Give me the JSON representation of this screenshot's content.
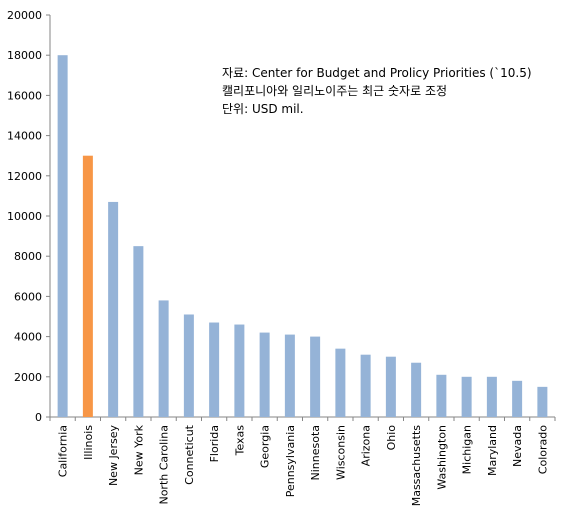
{
  "chart_data": {
    "type": "bar",
    "categories": [
      "California",
      "Illinois",
      "New Jersey",
      "New York",
      "North Carolina",
      "Conneticut",
      "Florida",
      "Texas",
      "Georgia",
      "Pennsylvania",
      "Ninnesota",
      "Wisconsin",
      "Arizona",
      "Ohio",
      "Massachusetts",
      "Washington",
      "Michigan",
      "Maryland",
      "Nevada",
      "Colorado"
    ],
    "values": [
      18000,
      13000,
      10700,
      8500,
      5800,
      5100,
      4700,
      4600,
      4200,
      4100,
      4000,
      3400,
      3100,
      3000,
      2700,
      2100,
      2000,
      2000,
      1800,
      1500
    ],
    "highlight_index": 1,
    "colors": {
      "bar": "#95B3D7",
      "highlight": "#F79646",
      "axis": "#868686"
    },
    "ylim": [
      0,
      20000
    ],
    "yticks": [
      "0",
      "2000",
      "4000",
      "6000",
      "8000",
      "10000",
      "12000",
      "14000",
      "16000",
      "18000",
      "20000"
    ],
    "xlabel": "",
    "ylabel": "",
    "legend": "none",
    "grid": false,
    "annotation": {
      "line1": "자료: Center for Budget and Prolicy Priorities (`10.5)",
      "line2": "캘리포니아와 일리노이주는 최근 숫자로 조정",
      "line3": "단위: USD mil."
    }
  }
}
